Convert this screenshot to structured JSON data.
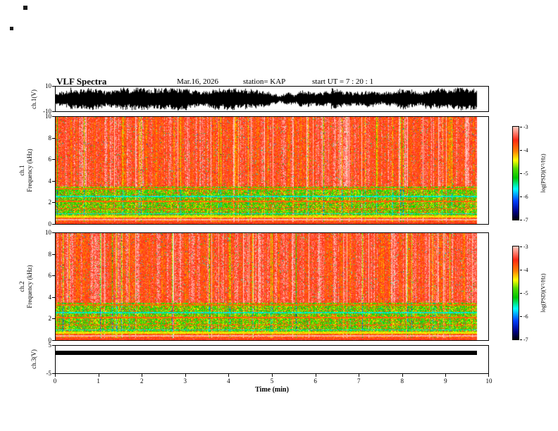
{
  "header": {
    "title": "VLF Spectra",
    "date": "Mar.16, 2026",
    "station": "station= KAP",
    "start_ut": "start UT =  7 : 20 : 1"
  },
  "xaxis": {
    "label": "Time (min)",
    "ticks": [
      0,
      1,
      2,
      3,
      4,
      5,
      6,
      7,
      8,
      9,
      10
    ],
    "lim": [
      0,
      10
    ]
  },
  "chart_data": [
    {
      "type": "line",
      "name": "ch1-voltage-waveform",
      "ylabel": "ch.1(V)",
      "ylim": [
        -10,
        10
      ],
      "yticks": [
        10,
        -10
      ],
      "xlim": [
        0,
        10
      ],
      "description": "dense black noise waveform, envelope fluctuating between about ±2 V and ±9 V across the full 0-10 min record"
    },
    {
      "type": "heatmap",
      "name": "ch1-spectrogram",
      "channel_label": "ch.1",
      "ylabel": "Frequency (kHz)",
      "ylim": [
        0,
        10
      ],
      "yticks": [
        0,
        2,
        4,
        6,
        8,
        10
      ],
      "xlim": [
        0,
        10
      ],
      "time_extent_min": [
        0,
        9.75
      ],
      "bands": [
        {
          "freq_khz": [
            3.6,
            10
          ],
          "psd_log_mean": -3.5,
          "appearance": "red field with pink/white and dark vertical streaks, sparse yellow speckle"
        },
        {
          "freq_khz": [
            0.9,
            3.6
          ],
          "psd_log_mean": -4.9,
          "appearance": "green/yellow mottled band with yellow horizontal lines near 3.3, 2.1, 1.4 kHz and darker lines near 2.6 and 1.0 kHz"
        },
        {
          "freq_khz": [
            0,
            0.9
          ],
          "psd_log_mean": -3.8,
          "appearance": "red-orange base with a light salmon line near 0.45 kHz"
        }
      ],
      "colorbar": {
        "label": "log(PSD)(V²/Hz)",
        "ticks": [
          -3,
          -4,
          -5,
          -6,
          -7
        ],
        "lim": [
          -3,
          -7
        ]
      }
    },
    {
      "type": "heatmap",
      "name": "ch2-spectrogram",
      "channel_label": "ch.2",
      "ylabel": "Frequency (kHz)",
      "ylim": [
        0,
        10
      ],
      "yticks": [
        0,
        2,
        4,
        6,
        8,
        10
      ],
      "xlim": [
        0,
        10
      ],
      "time_extent_min": [
        0,
        9.75
      ],
      "bands": [
        {
          "freq_khz": [
            3.6,
            10
          ],
          "psd_log_mean": -3.5,
          "appearance": "red field with pink/white and dark vertical streaks, sparse yellow speckle"
        },
        {
          "freq_khz": [
            0.9,
            3.6
          ],
          "psd_log_mean": -4.9,
          "appearance": "green/yellow mottled band with yellow horizontal lines and darker lines"
        },
        {
          "freq_khz": [
            0,
            0.9
          ],
          "psd_log_mean": -3.8,
          "appearance": "red-orange base with a light salmon line near 0.45 kHz"
        }
      ],
      "colorbar": {
        "label": "log(PSD)(V²/Hz)",
        "ticks": [
          -3,
          -4,
          -5,
          -6,
          -7
        ],
        "lim": [
          -3,
          -7
        ]
      }
    },
    {
      "type": "bar",
      "name": "ch3-voltage",
      "ylabel": "ch.3(V)",
      "ylim": [
        -5,
        5
      ],
      "yticks": [
        5,
        -5
      ],
      "xlim": [
        0,
        10
      ],
      "value": 3.0,
      "bar_extent_min": [
        0,
        9.7
      ],
      "description": "solid thick black horizontal bar at about +3 V spanning 0 to ~9.7 min"
    }
  ],
  "colormap": {
    "positions": [
      0,
      0.08,
      0.2,
      0.33,
      0.45,
      0.55,
      0.64,
      0.74,
      0.86,
      1
    ],
    "colors": [
      "#000010",
      "#000080",
      "#0040ff",
      "#00ffff",
      "#00c800",
      "#55dc00",
      "#ffff00",
      "#ff8000",
      "#ff2814",
      "#ffc8be"
    ]
  }
}
